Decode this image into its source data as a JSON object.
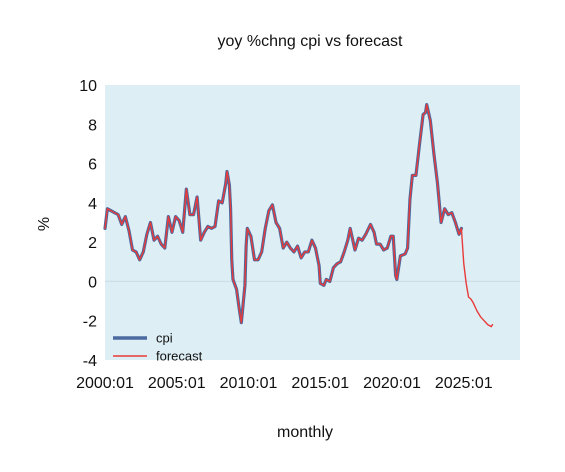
{
  "chart_data": {
    "type": "line",
    "title": "yoy %chng cpi vs forecast",
    "xlabel": "monthly",
    "ylabel": "%",
    "ylim": [
      -4,
      10
    ],
    "xlim": [
      "2000:01",
      "2028:12"
    ],
    "yticks": [
      "-4",
      "-2",
      "0",
      "2",
      "4",
      "6",
      "8",
      "10"
    ],
    "xticks": [
      "2000:01",
      "2005:01",
      "2010:01",
      "2015:01",
      "2020:01",
      "2025:01"
    ],
    "grid": false,
    "background": "#ddeef4",
    "legend_position": "lower-left",
    "series": [
      {
        "name": "cpi",
        "color": "#4a6aa0",
        "points": [
          [
            "2000:01",
            2.7
          ],
          [
            "2000:03",
            3.7
          ],
          [
            "2000:06",
            3.6
          ],
          [
            "2000:09",
            3.5
          ],
          [
            "2000:12",
            3.4
          ],
          [
            "2001:03",
            2.9
          ],
          [
            "2001:06",
            3.3
          ],
          [
            "2001:09",
            2.6
          ],
          [
            "2001:12",
            1.6
          ],
          [
            "2002:03",
            1.5
          ],
          [
            "2002:06",
            1.1
          ],
          [
            "2002:09",
            1.5
          ],
          [
            "2002:12",
            2.4
          ],
          [
            "2003:03",
            3.0
          ],
          [
            "2003:06",
            2.1
          ],
          [
            "2003:09",
            2.3
          ],
          [
            "2003:12",
            1.9
          ],
          [
            "2004:03",
            1.7
          ],
          [
            "2004:06",
            3.3
          ],
          [
            "2004:09",
            2.5
          ],
          [
            "2004:12",
            3.3
          ],
          [
            "2005:03",
            3.1
          ],
          [
            "2005:06",
            2.5
          ],
          [
            "2005:09",
            4.7
          ],
          [
            "2005:12",
            3.4
          ],
          [
            "2006:03",
            3.4
          ],
          [
            "2006:06",
            4.3
          ],
          [
            "2006:09",
            2.1
          ],
          [
            "2006:12",
            2.5
          ],
          [
            "2007:03",
            2.8
          ],
          [
            "2007:06",
            2.7
          ],
          [
            "2007:09",
            2.8
          ],
          [
            "2007:12",
            4.1
          ],
          [
            "2008:03",
            4.0
          ],
          [
            "2008:06",
            5.0
          ],
          [
            "2008:07",
            5.6
          ],
          [
            "2008:09",
            4.9
          ],
          [
            "2008:10",
            3.7
          ],
          [
            "2008:11",
            1.1
          ],
          [
            "2008:12",
            0.1
          ],
          [
            "2009:03",
            -0.4
          ],
          [
            "2009:05",
            -1.3
          ],
          [
            "2009:07",
            -2.1
          ],
          [
            "2009:10",
            -0.2
          ],
          [
            "2009:11",
            1.8
          ],
          [
            "2009:12",
            2.7
          ],
          [
            "2010:03",
            2.3
          ],
          [
            "2010:06",
            1.1
          ],
          [
            "2010:09",
            1.1
          ],
          [
            "2010:12",
            1.5
          ],
          [
            "2011:03",
            2.7
          ],
          [
            "2011:06",
            3.6
          ],
          [
            "2011:09",
            3.9
          ],
          [
            "2011:12",
            3.0
          ],
          [
            "2012:03",
            2.7
          ],
          [
            "2012:06",
            1.7
          ],
          [
            "2012:09",
            2.0
          ],
          [
            "2012:12",
            1.7
          ],
          [
            "2013:03",
            1.5
          ],
          [
            "2013:06",
            1.8
          ],
          [
            "2013:09",
            1.2
          ],
          [
            "2013:12",
            1.5
          ],
          [
            "2014:03",
            1.5
          ],
          [
            "2014:06",
            2.1
          ],
          [
            "2014:09",
            1.7
          ],
          [
            "2014:12",
            0.8
          ],
          [
            "2015:01",
            -0.1
          ],
          [
            "2015:04",
            -0.2
          ],
          [
            "2015:06",
            0.1
          ],
          [
            "2015:09",
            0.0
          ],
          [
            "2015:12",
            0.7
          ],
          [
            "2016:03",
            0.9
          ],
          [
            "2016:06",
            1.0
          ],
          [
            "2016:09",
            1.5
          ],
          [
            "2016:12",
            2.1
          ],
          [
            "2017:02",
            2.7
          ],
          [
            "2017:06",
            1.6
          ],
          [
            "2017:09",
            2.2
          ],
          [
            "2017:12",
            2.1
          ],
          [
            "2018:03",
            2.4
          ],
          [
            "2018:07",
            2.9
          ],
          [
            "2018:10",
            2.5
          ],
          [
            "2018:12",
            1.9
          ],
          [
            "2019:03",
            1.9
          ],
          [
            "2019:06",
            1.6
          ],
          [
            "2019:09",
            1.7
          ],
          [
            "2019:12",
            2.3
          ],
          [
            "2020:02",
            2.3
          ],
          [
            "2020:04",
            0.3
          ],
          [
            "2020:05",
            0.1
          ],
          [
            "2020:08",
            1.3
          ],
          [
            "2020:12",
            1.4
          ],
          [
            "2021:02",
            1.7
          ],
          [
            "2021:04",
            4.2
          ],
          [
            "2021:06",
            5.4
          ],
          [
            "2021:09",
            5.4
          ],
          [
            "2021:12",
            7.0
          ],
          [
            "2022:03",
            8.5
          ],
          [
            "2022:05",
            8.6
          ],
          [
            "2022:06",
            9.0
          ],
          [
            "2022:09",
            8.2
          ],
          [
            "2022:12",
            6.5
          ],
          [
            "2023:03",
            5.0
          ],
          [
            "2023:06",
            3.0
          ],
          [
            "2023:09",
            3.7
          ],
          [
            "2023:12",
            3.4
          ],
          [
            "2024:03",
            3.5
          ],
          [
            "2024:06",
            3.0
          ],
          [
            "2024:09",
            2.4
          ],
          [
            "2024:11",
            2.7
          ]
        ]
      },
      {
        "name": "forecast",
        "color": "#e83a3a",
        "points": [
          [
            "2000:01",
            2.7
          ],
          [
            "2000:03",
            3.7
          ],
          [
            "2000:06",
            3.6
          ],
          [
            "2000:09",
            3.5
          ],
          [
            "2000:12",
            3.4
          ],
          [
            "2001:03",
            2.9
          ],
          [
            "2001:06",
            3.3
          ],
          [
            "2001:09",
            2.6
          ],
          [
            "2001:12",
            1.6
          ],
          [
            "2002:03",
            1.5
          ],
          [
            "2002:06",
            1.1
          ],
          [
            "2002:09",
            1.5
          ],
          [
            "2002:12",
            2.4
          ],
          [
            "2003:03",
            3.0
          ],
          [
            "2003:06",
            2.1
          ],
          [
            "2003:09",
            2.3
          ],
          [
            "2003:12",
            1.9
          ],
          [
            "2004:03",
            1.7
          ],
          [
            "2004:06",
            3.3
          ],
          [
            "2004:09",
            2.5
          ],
          [
            "2004:12",
            3.3
          ],
          [
            "2005:03",
            3.1
          ],
          [
            "2005:06",
            2.5
          ],
          [
            "2005:09",
            4.7
          ],
          [
            "2005:12",
            3.4
          ],
          [
            "2006:03",
            3.4
          ],
          [
            "2006:06",
            4.3
          ],
          [
            "2006:09",
            2.1
          ],
          [
            "2006:12",
            2.5
          ],
          [
            "2007:03",
            2.8
          ],
          [
            "2007:06",
            2.7
          ],
          [
            "2007:09",
            2.8
          ],
          [
            "2007:12",
            4.1
          ],
          [
            "2008:03",
            4.0
          ],
          [
            "2008:06",
            5.0
          ],
          [
            "2008:07",
            5.6
          ],
          [
            "2008:09",
            4.9
          ],
          [
            "2008:10",
            3.7
          ],
          [
            "2008:11",
            1.1
          ],
          [
            "2008:12",
            0.1
          ],
          [
            "2009:03",
            -0.4
          ],
          [
            "2009:05",
            -1.3
          ],
          [
            "2009:07",
            -2.1
          ],
          [
            "2009:10",
            -0.2
          ],
          [
            "2009:11",
            1.8
          ],
          [
            "2009:12",
            2.7
          ],
          [
            "2010:03",
            2.3
          ],
          [
            "2010:06",
            1.1
          ],
          [
            "2010:09",
            1.1
          ],
          [
            "2010:12",
            1.5
          ],
          [
            "2011:03",
            2.7
          ],
          [
            "2011:06",
            3.6
          ],
          [
            "2011:09",
            3.9
          ],
          [
            "2011:12",
            3.0
          ],
          [
            "2012:03",
            2.7
          ],
          [
            "2012:06",
            1.7
          ],
          [
            "2012:09",
            2.0
          ],
          [
            "2012:12",
            1.7
          ],
          [
            "2013:03",
            1.5
          ],
          [
            "2013:06",
            1.8
          ],
          [
            "2013:09",
            1.2
          ],
          [
            "2013:12",
            1.5
          ],
          [
            "2014:03",
            1.5
          ],
          [
            "2014:06",
            2.1
          ],
          [
            "2014:09",
            1.7
          ],
          [
            "2014:12",
            0.8
          ],
          [
            "2015:01",
            -0.1
          ],
          [
            "2015:04",
            -0.2
          ],
          [
            "2015:06",
            0.1
          ],
          [
            "2015:09",
            0.0
          ],
          [
            "2015:12",
            0.7
          ],
          [
            "2016:03",
            0.9
          ],
          [
            "2016:06",
            1.0
          ],
          [
            "2016:09",
            1.5
          ],
          [
            "2016:12",
            2.1
          ],
          [
            "2017:02",
            2.7
          ],
          [
            "2017:06",
            1.6
          ],
          [
            "2017:09",
            2.2
          ],
          [
            "2017:12",
            2.1
          ],
          [
            "2018:03",
            2.4
          ],
          [
            "2018:07",
            2.9
          ],
          [
            "2018:10",
            2.5
          ],
          [
            "2018:12",
            1.9
          ],
          [
            "2019:03",
            1.9
          ],
          [
            "2019:06",
            1.6
          ],
          [
            "2019:09",
            1.7
          ],
          [
            "2019:12",
            2.3
          ],
          [
            "2020:02",
            2.3
          ],
          [
            "2020:04",
            0.3
          ],
          [
            "2020:05",
            0.1
          ],
          [
            "2020:08",
            1.3
          ],
          [
            "2020:12",
            1.4
          ],
          [
            "2021:02",
            1.7
          ],
          [
            "2021:04",
            4.2
          ],
          [
            "2021:06",
            5.4
          ],
          [
            "2021:09",
            5.4
          ],
          [
            "2021:12",
            7.0
          ],
          [
            "2022:03",
            8.5
          ],
          [
            "2022:05",
            8.6
          ],
          [
            "2022:06",
            9.0
          ],
          [
            "2022:09",
            8.2
          ],
          [
            "2022:12",
            6.5
          ],
          [
            "2023:03",
            5.0
          ],
          [
            "2023:06",
            3.0
          ],
          [
            "2023:09",
            3.7
          ],
          [
            "2023:12",
            3.4
          ],
          [
            "2024:03",
            3.5
          ],
          [
            "2024:06",
            3.0
          ],
          [
            "2024:09",
            2.4
          ],
          [
            "2024:11",
            2.7
          ],
          [
            "2025:01",
            0.9
          ],
          [
            "2025:03",
            -0.1
          ],
          [
            "2025:05",
            -0.8
          ],
          [
            "2025:07",
            -0.9
          ],
          [
            "2025:09",
            -1.1
          ],
          [
            "2025:12",
            -1.5
          ],
          [
            "2026:03",
            -1.8
          ],
          [
            "2026:06",
            -2.0
          ],
          [
            "2026:09",
            -2.2
          ],
          [
            "2026:12",
            -2.3
          ],
          [
            "2027:01",
            -2.2
          ]
        ]
      }
    ]
  }
}
